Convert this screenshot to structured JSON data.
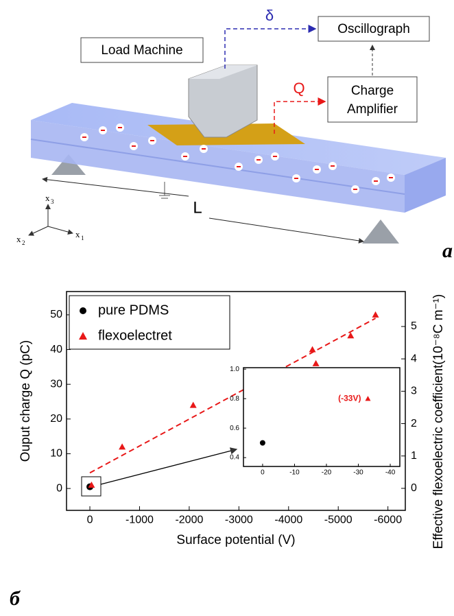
{
  "diagram": {
    "load_machine": "Load Machine",
    "oscillograph": "Oscillograph",
    "charge_amplifier": [
      "Charge",
      "Amplifier"
    ],
    "delta": "δ",
    "q": "Q",
    "length": "L",
    "axes": [
      "x",
      "3",
      "x",
      "2",
      "x",
      "1"
    ],
    "panel_label": "a"
  },
  "panel_label_b": "б",
  "chart_data": [
    {
      "type": "scatter",
      "x_label": "Surface potential (V)",
      "y_label": "Ouput charge Q (pC)",
      "y2_label": "Effective flexoelectric coefficient(10⁻⁸C m⁻¹)",
      "xlim": [
        470,
        -6350
      ],
      "xticks": [
        0,
        -1000,
        -2000,
        -3000,
        -4000,
        -5000,
        -6000
      ],
      "ylim": [
        -6.3,
        56.7
      ],
      "yticks": [
        0,
        10,
        20,
        30,
        40,
        50
      ],
      "y2lim": [
        -0.68,
        6.08
      ],
      "y2ticks": [
        0,
        1,
        2,
        3,
        4,
        5
      ],
      "legend": "top-left",
      "series": [
        {
          "name": "pure PDMS",
          "color": "#000000",
          "marker": "circle",
          "x": [
            0
          ],
          "values": [
            0.5
          ]
        },
        {
          "name": "flexoelectret",
          "color": "#e81818",
          "marker": "triangle",
          "x": [
            -33,
            -650,
            -2080,
            -4480,
            -4550,
            -5250,
            -5750
          ],
          "values": [
            1,
            12,
            24,
            40,
            36,
            44,
            50
          ]
        }
      ],
      "fit_line": {
        "color": "#e81818",
        "x": [
          0,
          -5750
        ],
        "values": [
          4.5,
          49
        ]
      }
    },
    {
      "type": "scatter",
      "xlim": [
        6,
        -43
      ],
      "xticks": [
        0,
        -10,
        -20,
        -30,
        -40
      ],
      "ylim": [
        0.34,
        1.01
      ],
      "yticks": [
        0.4,
        0.6,
        0.8,
        {
          "value": 1,
          "label": "1.0"
        }
      ],
      "annotation": "(-33V)",
      "series": [
        {
          "color": "#000000",
          "marker": "circle",
          "x": [
            0
          ],
          "values": [
            0.5
          ]
        },
        {
          "color": "#e81818",
          "marker": "triangle",
          "x": [
            -33
          ],
          "values": [
            0.8
          ]
        }
      ]
    }
  ]
}
